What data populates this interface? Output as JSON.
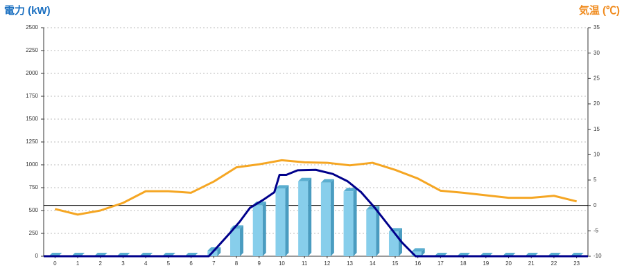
{
  "chart_data": {
    "type": "bar",
    "y_title": "電力 (kW)",
    "y2_title": "気温 (℃)",
    "y_title_color": "#1a6fc0",
    "y2_title_color": "#f08a1c",
    "categories": [
      "0",
      "1",
      "2",
      "3",
      "4",
      "5",
      "6",
      "7",
      "8",
      "9",
      "10",
      "11",
      "12",
      "13",
      "14",
      "15",
      "16",
      "17",
      "18",
      "19",
      "20",
      "21",
      "22",
      "23"
    ],
    "ylim": [
      0,
      2500
    ],
    "yticks": [
      0,
      250,
      500,
      750,
      1000,
      1250,
      1500,
      1750,
      2000,
      2250,
      2500
    ],
    "y2lim": [
      -10,
      35
    ],
    "y2ticks": [
      -10,
      -5,
      0,
      5,
      10,
      15,
      20,
      25,
      30,
      35
    ],
    "grid": true,
    "series": [
      {
        "type": "bar",
        "color": "#87ceeb",
        "values": [
          0,
          0,
          0,
          0,
          0,
          0,
          0,
          60,
          300,
          560,
          740,
          820,
          805,
          710,
          510,
          270,
          50,
          0,
          0,
          0,
          0,
          0,
          0,
          0
        ]
      },
      {
        "type": "line",
        "color": "#00008b",
        "x": [
          -0.5,
          6.78,
          7.08,
          7.7,
          8.15,
          8.6,
          9.2,
          9.67,
          9.9,
          10.2,
          10.7,
          11.5,
          12.25,
          12.9,
          13.5,
          14.1,
          14.7,
          15.3,
          15.9,
          23.5
        ],
        "values": [
          0,
          0,
          80,
          250,
          380,
          530,
          620,
          700,
          890,
          890,
          940,
          945,
          900,
          820,
          700,
          530,
          340,
          150,
          0,
          0
        ]
      },
      {
        "type": "line",
        "color": "#f5a623",
        "axis": "y2",
        "values": [
          -0.7,
          -1.8,
          -1.0,
          0.5,
          2.8,
          2.8,
          2.5,
          4.7,
          7.5,
          8.1,
          8.9,
          8.5,
          8.4,
          7.9,
          8.4,
          7.0,
          5.3,
          2.9,
          2.5,
          2.0,
          1.5,
          1.5,
          1.9,
          0.8
        ]
      }
    ]
  }
}
